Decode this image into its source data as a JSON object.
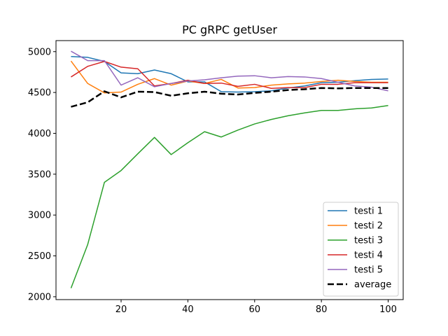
{
  "chart_data": {
    "type": "line",
    "title": "PC gRPC getUser",
    "xlabel": "",
    "ylabel": "",
    "xlim": [
      0.5,
      104.5
    ],
    "ylim": [
      1965,
      5135
    ],
    "xticks": [
      20,
      40,
      60,
      80,
      100
    ],
    "yticks": [
      2000,
      2500,
      3000,
      3500,
      4000,
      4500,
      5000
    ],
    "grid": false,
    "legend_position": "lower right",
    "x": [
      5,
      10,
      15,
      20,
      25,
      30,
      35,
      40,
      45,
      50,
      55,
      60,
      65,
      70,
      75,
      80,
      85,
      90,
      95,
      100
    ],
    "series": [
      {
        "name": "testi 1",
        "color": "#1f77b4",
        "style": "solid",
        "values": [
          4940,
          4930,
          4880,
          4740,
          4730,
          4775,
          4730,
          4630,
          4630,
          4510,
          4505,
          4510,
          4520,
          4555,
          4580,
          4620,
          4625,
          4645,
          4660,
          4665
        ]
      },
      {
        "name": "testi 2",
        "color": "#ff7f0e",
        "style": "solid",
        "values": [
          4885,
          4610,
          4495,
          4505,
          4600,
          4670,
          4590,
          4640,
          4610,
          4660,
          4555,
          4560,
          4590,
          4605,
          4615,
          4635,
          4650,
          4635,
          4625,
          4625
        ]
      },
      {
        "name": "testi 3",
        "color": "#2ca02c",
        "style": "solid",
        "values": [
          2105,
          2640,
          3400,
          3545,
          3750,
          3950,
          3740,
          3885,
          4020,
          3955,
          4040,
          4115,
          4170,
          4215,
          4250,
          4280,
          4280,
          4300,
          4310,
          4340
        ]
      },
      {
        "name": "testi 4",
        "color": "#d62728",
        "style": "solid",
        "values": [
          4690,
          4820,
          4880,
          4810,
          4790,
          4580,
          4610,
          4650,
          4610,
          4615,
          4575,
          4600,
          4550,
          4560,
          4560,
          4600,
          4600,
          4620,
          4620,
          4620
        ]
      },
      {
        "name": "testi 5",
        "color": "#9467bd",
        "style": "solid",
        "values": [
          5005,
          4890,
          4890,
          4590,
          4680,
          4570,
          4610,
          4640,
          4655,
          4680,
          4700,
          4705,
          4680,
          4695,
          4690,
          4670,
          4625,
          4580,
          4565,
          4520
        ]
      },
      {
        "name": "average",
        "color": "#000000",
        "style": "dashed",
        "values": [
          4325,
          4380,
          4515,
          4440,
          4510,
          4505,
          4460,
          4490,
          4510,
          4485,
          4475,
          4495,
          4510,
          4530,
          4540,
          4555,
          4550,
          4555,
          4555,
          4555
        ]
      }
    ]
  }
}
